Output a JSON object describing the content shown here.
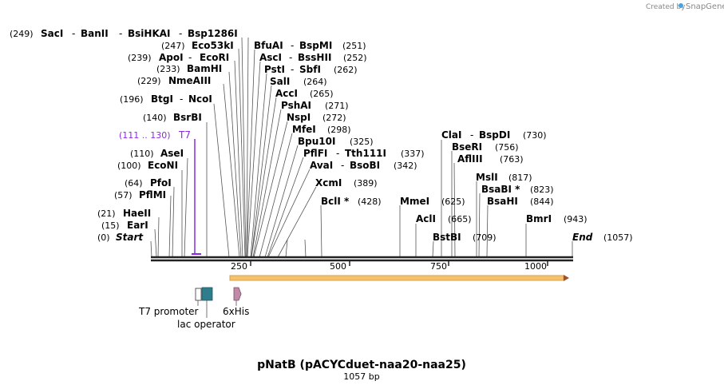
{
  "header": {
    "credit_prefix": "Created by",
    "credit_brand": "SnapGene"
  },
  "map": {
    "title": "pNatB (pACYCduet-naa20-naa25)",
    "length_label": "1057 bp"
  },
  "ticks": [
    "250",
    "500",
    "750",
    "1000"
  ],
  "features": {
    "t7_label": "T7",
    "t7_range": "(111 .. 130)",
    "t7_promoter": "T7 promoter",
    "lac_operator": "lac operator",
    "his": "6xHis"
  },
  "sites": {
    "start": {
      "pos": "(0)",
      "name": "Start"
    },
    "ear": {
      "pos": "(15)",
      "name": "EarI"
    },
    "hae": {
      "pos": "(21)",
      "name": "HaeII"
    },
    "pflm": {
      "pos": "(57)",
      "name": "PflMI"
    },
    "pfo": {
      "pos": "(64)",
      "name": "PfoI"
    },
    "econi": {
      "pos": "(100)",
      "name": "EcoNI"
    },
    "ase": {
      "pos": "(110)",
      "name": "AseI"
    },
    "bsrbi": {
      "pos": "(140)",
      "name": "BsrBI"
    },
    "btgi": {
      "pos": "(196)",
      "name": "BtgI",
      "name2": "NcoI"
    },
    "nmea": {
      "pos": "(229)",
      "name": "NmeAIII"
    },
    "bamhi": {
      "pos": "(233)",
      "name": "BamHI"
    },
    "apoi": {
      "pos": "(239)",
      "name": "ApoI",
      "name2": "EcoRI"
    },
    "eco53": {
      "pos": "(247)",
      "name": "Eco53kI"
    },
    "saci": {
      "pos": "(249)",
      "name": "SacI",
      "name2": "BanII",
      "name3": "BsiHKAI",
      "name4": "Bsp1286I"
    },
    "bfuai": {
      "name": "BfuAI",
      "name2": "BspMI",
      "pos": "(251)"
    },
    "asci": {
      "name": "AscI",
      "name2": "BssHII",
      "pos": "(252)"
    },
    "psti": {
      "name": "PstI",
      "name2": "SbfI",
      "pos": "(262)"
    },
    "sali": {
      "name": "SalI",
      "pos": "(264)"
    },
    "acci": {
      "name": "AccI",
      "pos": "(265)"
    },
    "pshai": {
      "name": "PshAI",
      "pos": "(271)"
    },
    "nspi": {
      "name": "NspI",
      "pos": "(272)"
    },
    "mfei": {
      "name": "MfeI",
      "pos": "(298)"
    },
    "bpu10i": {
      "name": "Bpu10I",
      "pos": "(325)"
    },
    "pflfi": {
      "name": "PflFI",
      "name2": "Tth111I",
      "pos": "(337)"
    },
    "avai": {
      "name": "AvaI",
      "name2": "BsoBI",
      "pos": "(342)"
    },
    "xcmi": {
      "name": "XcmI",
      "pos": "(389)"
    },
    "bcli": {
      "name": "BclI *",
      "pos": "(428)"
    },
    "mmei": {
      "name": "MmeI",
      "pos": "(625)"
    },
    "acli": {
      "name": "AclI",
      "pos": "(665)"
    },
    "bstbi": {
      "name": "BstBI",
      "pos": "(709)"
    },
    "clai": {
      "name": "ClaI",
      "name2": "BspDI",
      "pos": "(730)"
    },
    "bseri": {
      "name": "BseRI",
      "pos": "(756)"
    },
    "afliii": {
      "name": "AflIII",
      "pos": "(763)"
    },
    "msli": {
      "name": "MslI",
      "pos": "(817)"
    },
    "bsabi": {
      "name": "BsaBI *",
      "pos": "(823)"
    },
    "bsahi": {
      "name": "BsaHI",
      "pos": "(844)"
    },
    "bmri": {
      "name": "BmrI",
      "pos": "(943)"
    },
    "end": {
      "name": "End",
      "pos": "(1057)"
    }
  },
  "colors": {
    "t7": "#8a2be2",
    "orf": "#f5c26b",
    "lac": "#2e7d8c",
    "his": "#c08aa8"
  }
}
